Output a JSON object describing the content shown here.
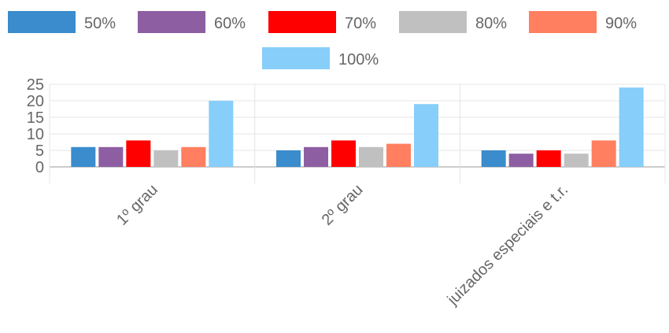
{
  "chart_data": {
    "type": "bar",
    "categories": [
      "1º grau",
      "2º grau",
      "juizados especiais e t.r."
    ],
    "series": [
      {
        "name": "50%",
        "color": "#3a8ccc",
        "values": [
          6,
          5,
          5
        ]
      },
      {
        "name": "60%",
        "color": "#8e5ea2",
        "values": [
          6,
          6,
          4
        ]
      },
      {
        "name": "70%",
        "color": "#ff0000",
        "values": [
          8,
          8,
          5
        ]
      },
      {
        "name": "80%",
        "color": "#c0c0c0",
        "values": [
          5,
          6,
          4
        ]
      },
      {
        "name": "90%",
        "color": "#ff7f60",
        "values": [
          6,
          7,
          8
        ]
      },
      {
        "name": "100%",
        "color": "#87cefa",
        "values": [
          20,
          19,
          24
        ]
      }
    ],
    "yticks": [
      0,
      5,
      10,
      15,
      20,
      25
    ],
    "ylim": [
      0,
      25
    ],
    "grid": true,
    "legend_position": "top"
  }
}
